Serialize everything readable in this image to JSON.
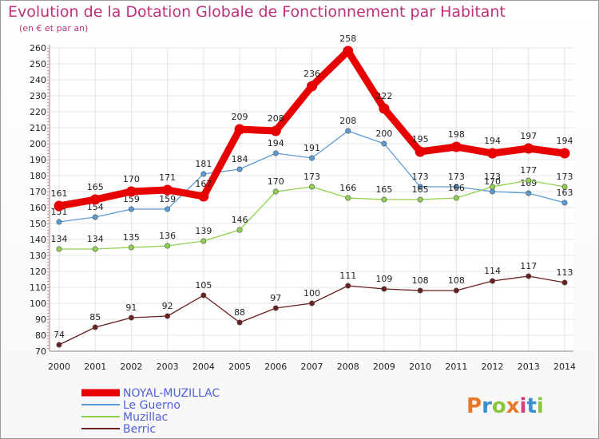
{
  "header": {
    "title": "Evolution de la Dotation Globale de Fonctionnement par Habitant",
    "subtitle": "(en € et par an)"
  },
  "logo": {
    "text": "Proxiti",
    "colors": [
      "#e8782a",
      "#3a8fd0",
      "#8cc63f",
      "#e8782a",
      "#d93a7a",
      "#3a8fd0",
      "#8cc63f"
    ]
  },
  "chart_data": {
    "type": "line",
    "title": "Evolution de la Dotation Globale de Fonctionnement par Habitant",
    "subtitle": "(en € et par an)",
    "xlabel": "",
    "ylabel": "",
    "ylim": [
      70,
      260
    ],
    "ystep": 10,
    "grid": true,
    "legend_position": "bottom-left",
    "x": [
      2000,
      2001,
      2002,
      2003,
      2004,
      2005,
      2006,
      2007,
      2008,
      2009,
      2010,
      2011,
      2012,
      2013,
      2014
    ],
    "series": [
      {
        "name": "NOYAL-MUZILLAC",
        "color": "#e60000",
        "emphasis": true,
        "values": [
          161,
          165,
          170,
          171,
          167,
          209,
          208,
          236,
          258,
          222,
          195,
          198,
          194,
          197,
          194
        ]
      },
      {
        "name": "Le Guerno",
        "color": "#5b9bd5",
        "emphasis": false,
        "values": [
          151,
          154,
          159,
          159,
          181,
          184,
          194,
          191,
          208,
          200,
          173,
          173,
          170,
          169,
          163
        ]
      },
      {
        "name": "Muzillac",
        "color": "#8fd14f",
        "emphasis": false,
        "values": [
          134,
          134,
          135,
          136,
          139,
          146,
          170,
          173,
          166,
          165,
          165,
          166,
          173,
          177,
          173
        ]
      },
      {
        "name": "Berric",
        "color": "#6b1f1f",
        "emphasis": false,
        "values": [
          74,
          85,
          91,
          92,
          105,
          88,
          97,
          100,
          111,
          109,
          108,
          108,
          114,
          117,
          113
        ]
      }
    ]
  }
}
